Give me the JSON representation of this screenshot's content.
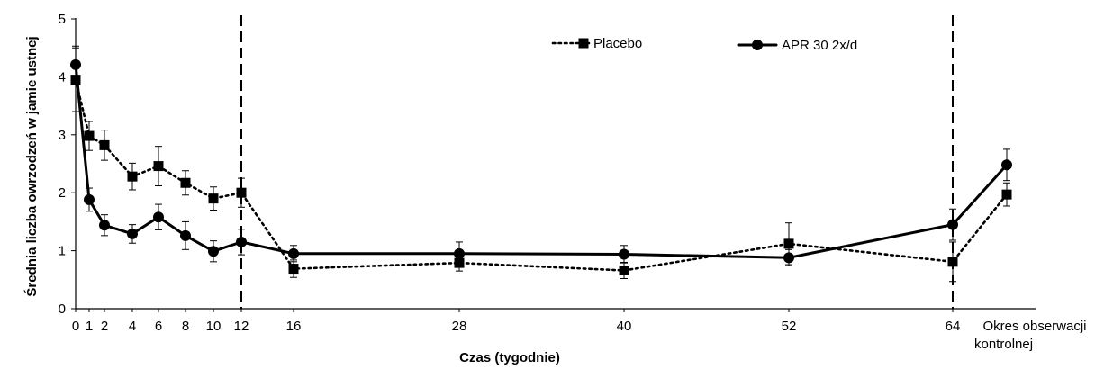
{
  "chart_data": {
    "type": "line",
    "title": "",
    "xlabel": "Czas (tygodnie)",
    "ylabel": "Średnia liczba owrzodzeń w jamie ustnej",
    "ylim": [
      0,
      5
    ],
    "yticks": [
      "0",
      "1",
      "2",
      "3",
      "4",
      "5"
    ],
    "x_ticks": [
      "0",
      "1",
      "2",
      "4",
      "6",
      "8",
      "10",
      "12",
      "16",
      "28",
      "40",
      "52",
      "64"
    ],
    "x_extra_label": [
      "Okres obserwacji",
      "kontrolnej"
    ],
    "reference_lines": [
      "12",
      "64"
    ],
    "grid": false,
    "legend_position": "top-right",
    "categories": [
      "0",
      "1",
      "2",
      "4",
      "6",
      "8",
      "10",
      "12",
      "16",
      "28",
      "40",
      "52",
      "64",
      "Okres obserwacji kontrolnej"
    ],
    "series": [
      {
        "name": "Placebo",
        "style": "dotted",
        "marker": "square",
        "color": "#000000",
        "values": [
          3.95,
          2.98,
          2.82,
          2.28,
          2.46,
          2.17,
          1.9,
          2.0,
          0.69,
          0.79,
          0.66,
          1.12,
          0.81,
          1.97
        ],
        "errors": [
          0.55,
          0.25,
          0.26,
          0.23,
          0.34,
          0.21,
          0.2,
          0.25,
          0.15,
          0.14,
          0.14,
          0.36,
          0.34,
          0.2
        ]
      },
      {
        "name": "APR 30 2x/d",
        "style": "solid",
        "marker": "circle",
        "color": "#000000",
        "values": [
          4.21,
          1.88,
          1.44,
          1.29,
          1.58,
          1.26,
          0.99,
          1.15,
          0.95,
          0.95,
          0.94,
          0.88,
          1.45,
          2.48
        ],
        "errors": [
          0.32,
          0.2,
          0.18,
          0.16,
          0.22,
          0.24,
          0.18,
          0.22,
          0.14,
          0.2,
          0.15,
          0.14,
          0.27,
          0.27
        ]
      }
    ]
  }
}
